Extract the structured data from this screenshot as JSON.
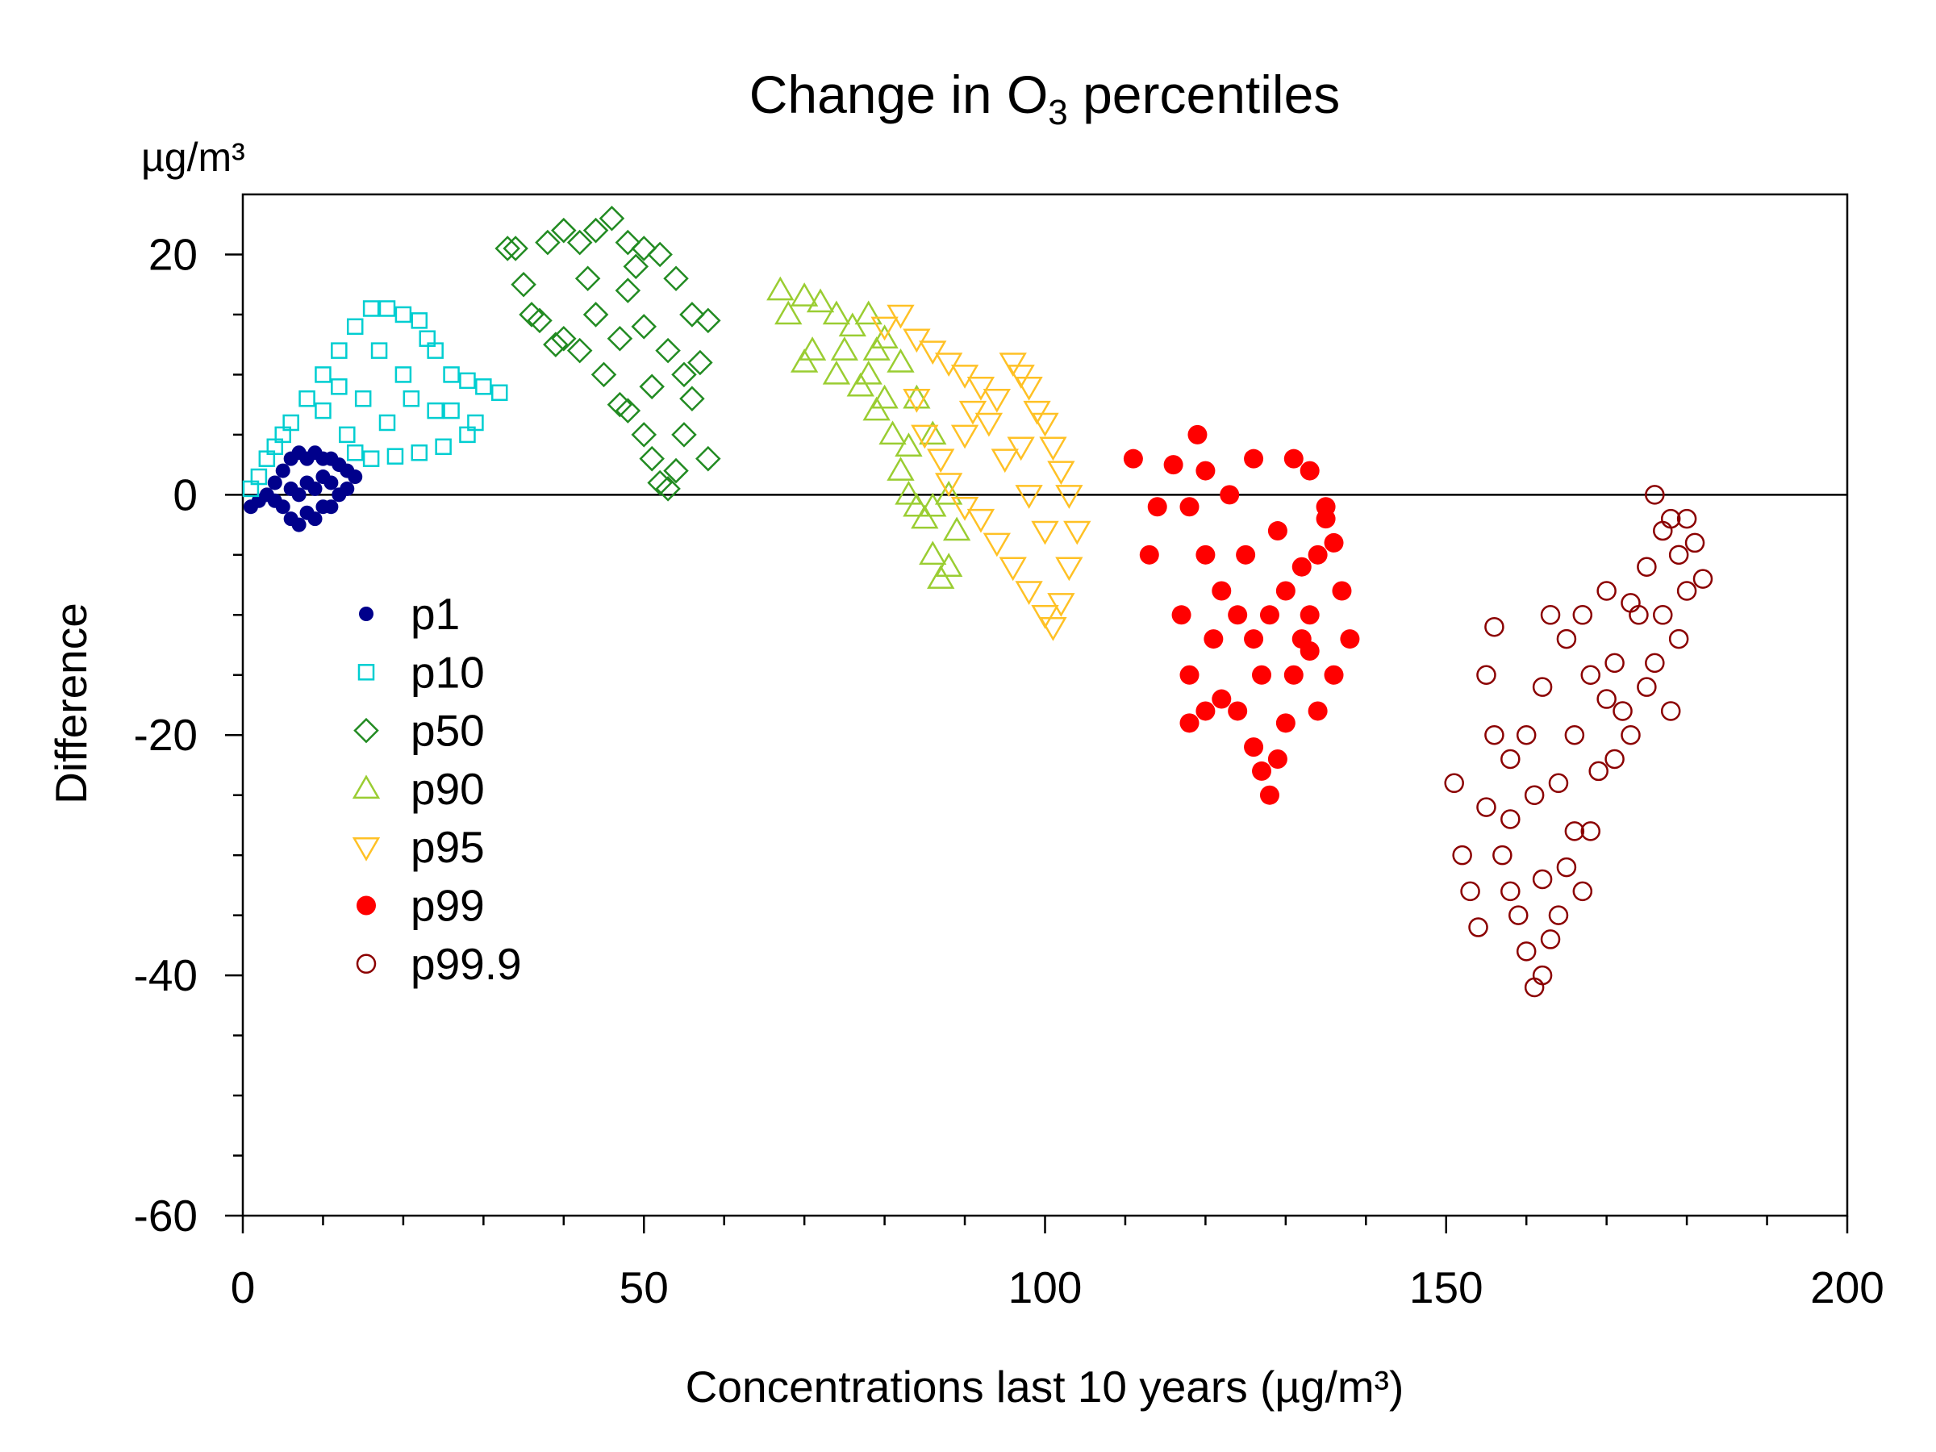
{
  "chart_data": {
    "type": "scatter",
    "title": "Change in O",
    "title_subscript": "3",
    "title_suffix": " percentiles",
    "y_unit": "µg/m³",
    "xlabel": "Concentrations last 10 years (µg/m³)",
    "ylabel": "Difference",
    "xlim": [
      0,
      200
    ],
    "ylim": [
      -60,
      25
    ],
    "x_ticks": [
      "0",
      "50",
      "100",
      "150",
      "200"
    ],
    "y_ticks": [
      "20",
      "0",
      "-20",
      "-40",
      "-60"
    ],
    "reference_line_y": 0,
    "grid": false,
    "legend_position": "left-middle",
    "series": [
      {
        "name": "p1",
        "marker": "filled-small-circle",
        "color": "#00008B",
        "points": [
          [
            1,
            -1
          ],
          [
            2,
            -0.5
          ],
          [
            3,
            0
          ],
          [
            4,
            1
          ],
          [
            5,
            2
          ],
          [
            6,
            3
          ],
          [
            7,
            3.5
          ],
          [
            8,
            3
          ],
          [
            9,
            3.5
          ],
          [
            10,
            3
          ],
          [
            11,
            3
          ],
          [
            12,
            2.5
          ],
          [
            13,
            2
          ],
          [
            14,
            1.5
          ],
          [
            5,
            -1
          ],
          [
            6,
            -2
          ],
          [
            7,
            -2.5
          ],
          [
            8,
            -1.5
          ],
          [
            9,
            -2
          ],
          [
            10,
            -1
          ],
          [
            11,
            -1
          ],
          [
            12,
            0
          ],
          [
            7,
            0
          ],
          [
            8,
            1
          ],
          [
            9,
            0.5
          ],
          [
            10,
            1.5
          ],
          [
            11,
            1
          ],
          [
            6,
            0.5
          ],
          [
            4,
            -0.5
          ],
          [
            13,
            0.5
          ]
        ]
      },
      {
        "name": "p10",
        "marker": "open-square",
        "color": "#00CED1",
        "points": [
          [
            1,
            0.5
          ],
          [
            2,
            1.5
          ],
          [
            3,
            3
          ],
          [
            4,
            4
          ],
          [
            5,
            5
          ],
          [
            6,
            6
          ],
          [
            8,
            8
          ],
          [
            10,
            10
          ],
          [
            12,
            12
          ],
          [
            14,
            14
          ],
          [
            16,
            15.5
          ],
          [
            18,
            15.5
          ],
          [
            20,
            15
          ],
          [
            22,
            14.5
          ],
          [
            23,
            13
          ],
          [
            24,
            12
          ],
          [
            26,
            10
          ],
          [
            28,
            9.5
          ],
          [
            30,
            9
          ],
          [
            32,
            8.5
          ],
          [
            29,
            6
          ],
          [
            28,
            5
          ],
          [
            25,
            4
          ],
          [
            22,
            3.5
          ],
          [
            19,
            3.2
          ],
          [
            16,
            3
          ],
          [
            14,
            3.5
          ],
          [
            13,
            5
          ],
          [
            10,
            7
          ],
          [
            15,
            8
          ],
          [
            20,
            10
          ],
          [
            18,
            6
          ],
          [
            24,
            7
          ],
          [
            12,
            9
          ],
          [
            17,
            12
          ],
          [
            21,
            8
          ],
          [
            26,
            7
          ]
        ]
      },
      {
        "name": "p50",
        "marker": "open-diamond",
        "color": "#228B22",
        "points": [
          [
            33,
            20.5
          ],
          [
            34,
            20.5
          ],
          [
            35,
            17.5
          ],
          [
            36,
            15
          ],
          [
            37,
            14.5
          ],
          [
            38,
            21
          ],
          [
            40,
            22
          ],
          [
            42,
            21
          ],
          [
            44,
            22
          ],
          [
            46,
            23
          ],
          [
            48,
            21
          ],
          [
            50,
            20.5
          ],
          [
            52,
            20
          ],
          [
            54,
            18
          ],
          [
            56,
            15
          ],
          [
            58,
            14.5
          ],
          [
            57,
            11
          ],
          [
            56,
            8
          ],
          [
            55,
            5
          ],
          [
            54,
            2
          ],
          [
            53,
            0.5
          ],
          [
            52,
            1
          ],
          [
            51,
            3
          ],
          [
            50,
            5
          ],
          [
            48,
            7
          ],
          [
            47,
            7.5
          ],
          [
            45,
            10
          ],
          [
            42,
            12
          ],
          [
            40,
            13
          ],
          [
            39,
            12.5
          ],
          [
            44,
            15
          ],
          [
            48,
            17
          ],
          [
            50,
            14
          ],
          [
            53,
            12
          ],
          [
            47,
            13
          ],
          [
            51,
            9
          ],
          [
            55,
            10
          ],
          [
            58,
            3
          ],
          [
            43,
            18
          ],
          [
            49,
            19
          ]
        ]
      },
      {
        "name": "p90",
        "marker": "open-triangle-up",
        "color": "#9ACD32",
        "points": [
          [
            67,
            17
          ],
          [
            68,
            15
          ],
          [
            70,
            16.5
          ],
          [
            72,
            16
          ],
          [
            74,
            15
          ],
          [
            76,
            14
          ],
          [
            78,
            15
          ],
          [
            79,
            12
          ],
          [
            80,
            13
          ],
          [
            82,
            11
          ],
          [
            84,
            8
          ],
          [
            86,
            5
          ],
          [
            88,
            0
          ],
          [
            89,
            -3
          ],
          [
            88,
            -6
          ],
          [
            87,
            -7
          ],
          [
            86,
            -5
          ],
          [
            85,
            -2
          ],
          [
            84,
            -1
          ],
          [
            83,
            0
          ],
          [
            82,
            2
          ],
          [
            81,
            5
          ],
          [
            79,
            7
          ],
          [
            77,
            9
          ],
          [
            74,
            10
          ],
          [
            71,
            12
          ],
          [
            70,
            11
          ],
          [
            75,
            12
          ],
          [
            78,
            10
          ],
          [
            83,
            4
          ],
          [
            86,
            -1
          ],
          [
            80,
            8
          ]
        ]
      },
      {
        "name": "p95",
        "marker": "open-triangle-down",
        "color": "#FFC125",
        "points": [
          [
            80,
            14
          ],
          [
            82,
            15
          ],
          [
            84,
            13
          ],
          [
            86,
            12
          ],
          [
            88,
            11
          ],
          [
            90,
            10
          ],
          [
            92,
            9
          ],
          [
            94,
            8
          ],
          [
            96,
            11
          ],
          [
            97,
            10
          ],
          [
            98,
            9
          ],
          [
            99,
            7
          ],
          [
            100,
            6
          ],
          [
            101,
            4
          ],
          [
            102,
            2
          ],
          [
            103,
            0
          ],
          [
            104,
            -3
          ],
          [
            103,
            -6
          ],
          [
            102,
            -9
          ],
          [
            101,
            -11
          ],
          [
            100,
            -10
          ],
          [
            98,
            -8
          ],
          [
            96,
            -6
          ],
          [
            94,
            -4
          ],
          [
            92,
            -2
          ],
          [
            90,
            -1
          ],
          [
            88,
            1
          ],
          [
            87,
            3
          ],
          [
            85,
            5
          ],
          [
            84,
            8
          ],
          [
            90,
            5
          ],
          [
            95,
            3
          ],
          [
            98,
            0
          ],
          [
            100,
            -3
          ],
          [
            93,
            6
          ],
          [
            97,
            4
          ],
          [
            91,
            7
          ]
        ]
      },
      {
        "name": "p99",
        "marker": "filled-circle",
        "color": "#FF0000",
        "points": [
          [
            111,
            3
          ],
          [
            113,
            -5
          ],
          [
            114,
            -1
          ],
          [
            116,
            2.5
          ],
          [
            118,
            -1
          ],
          [
            119,
            5
          ],
          [
            120,
            2
          ],
          [
            123,
            0
          ],
          [
            126,
            3
          ],
          [
            131,
            3
          ],
          [
            133,
            2
          ],
          [
            117,
            -10
          ],
          [
            118,
            -15
          ],
          [
            118,
            -19
          ],
          [
            120,
            -18
          ],
          [
            122,
            -17
          ],
          [
            124,
            -18
          ],
          [
            126,
            -21
          ],
          [
            127,
            -23
          ],
          [
            128,
            -25
          ],
          [
            129,
            -22
          ],
          [
            130,
            -19
          ],
          [
            131,
            -15
          ],
          [
            132,
            -12
          ],
          [
            133,
            -13
          ],
          [
            134,
            -5
          ],
          [
            135,
            -2
          ],
          [
            135,
            -1
          ],
          [
            136,
            -4
          ],
          [
            137,
            -8
          ],
          [
            138,
            -12
          ],
          [
            136,
            -15
          ],
          [
            133,
            -10
          ],
          [
            130,
            -8
          ],
          [
            128,
            -10
          ],
          [
            126,
            -12
          ],
          [
            124,
            -10
          ],
          [
            122,
            -8
          ],
          [
            120,
            -5
          ],
          [
            121,
            -12
          ],
          [
            125,
            -5
          ],
          [
            129,
            -3
          ],
          [
            132,
            -6
          ],
          [
            134,
            -18
          ],
          [
            127,
            -15
          ]
        ]
      },
      {
        "name": "p99.9",
        "marker": "open-circle",
        "color": "#8B0000",
        "points": [
          [
            151,
            -24
          ],
          [
            152,
            -30
          ],
          [
            153,
            -33
          ],
          [
            154,
            -36
          ],
          [
            155,
            -15
          ],
          [
            156,
            -11
          ],
          [
            156,
            -20
          ],
          [
            158,
            -27
          ],
          [
            159,
            -35
          ],
          [
            160,
            -38
          ],
          [
            161,
            -41
          ],
          [
            162,
            -40
          ],
          [
            163,
            -37
          ],
          [
            164,
            -35
          ],
          [
            165,
            -31
          ],
          [
            166,
            -28
          ],
          [
            167,
            -33
          ],
          [
            168,
            -28
          ],
          [
            169,
            -23
          ],
          [
            170,
            -17
          ],
          [
            171,
            -14
          ],
          [
            172,
            -18
          ],
          [
            173,
            -20
          ],
          [
            174,
            -10
          ],
          [
            175,
            -6
          ],
          [
            176,
            0
          ],
          [
            177,
            -3
          ],
          [
            178,
            -2
          ],
          [
            179,
            -5
          ],
          [
            180,
            -2
          ],
          [
            181,
            -4
          ],
          [
            182,
            -7
          ],
          [
            179,
            -12
          ],
          [
            178,
            -18
          ],
          [
            176,
            -14
          ],
          [
            173,
            -9
          ],
          [
            170,
            -8
          ],
          [
            167,
            -10
          ],
          [
            165,
            -12
          ],
          [
            163,
            -10
          ],
          [
            162,
            -16
          ],
          [
            160,
            -20
          ],
          [
            158,
            -22
          ],
          [
            157,
            -30
          ],
          [
            155,
            -26
          ],
          [
            161,
            -25
          ],
          [
            164,
            -24
          ],
          [
            166,
            -20
          ],
          [
            168,
            -15
          ],
          [
            171,
            -22
          ],
          [
            175,
            -16
          ],
          [
            177,
            -10
          ],
          [
            180,
            -8
          ],
          [
            162,
            -32
          ],
          [
            158,
            -33
          ]
        ]
      }
    ]
  }
}
